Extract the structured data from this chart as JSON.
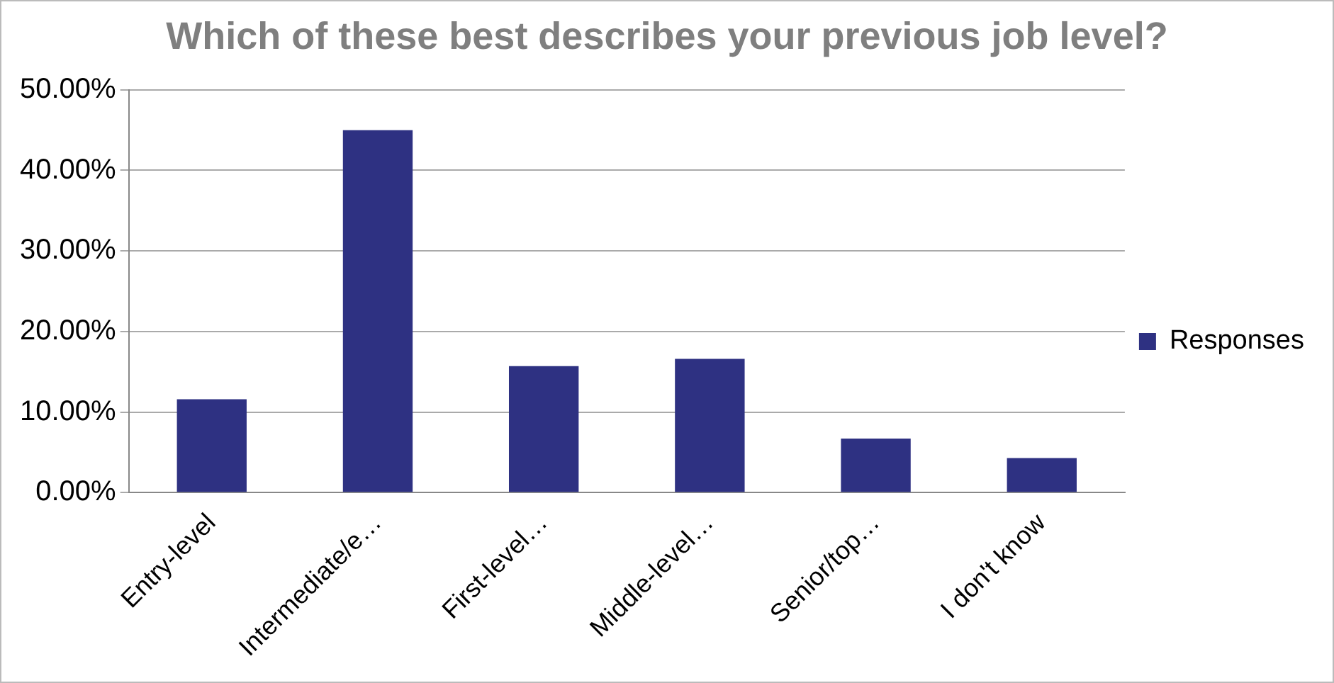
{
  "chart_data": {
    "type": "bar",
    "title": "Which of these best describes your previous job level?",
    "categories": [
      "Entry-level",
      "Intermediate/e…",
      "First-level…",
      "Middle-level…",
      "Senior/top…",
      "I don't know"
    ],
    "series": [
      {
        "name": "Responses",
        "color": "#2e3182",
        "values": [
          11.6,
          45.0,
          15.7,
          16.6,
          6.7,
          4.3
        ]
      }
    ],
    "ylim": [
      0,
      50
    ],
    "yticks": [
      {
        "value": 0,
        "label": "0.00%"
      },
      {
        "value": 10,
        "label": "10.00%"
      },
      {
        "value": 20,
        "label": "20.00%"
      },
      {
        "value": 30,
        "label": "30.00%"
      },
      {
        "value": 40,
        "label": "40.00%"
      },
      {
        "value": 50,
        "label": "50.00%"
      }
    ],
    "grid": "y",
    "legend": "right"
  }
}
